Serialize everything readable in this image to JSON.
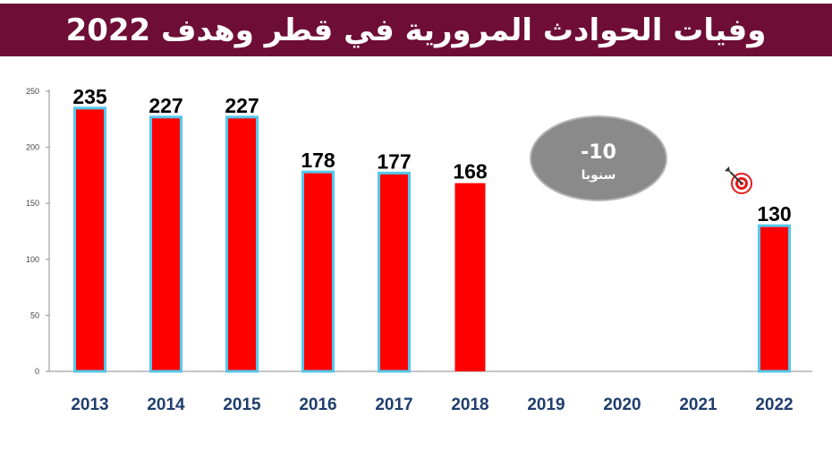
{
  "title": "وفيات الحوادث المرورية في قطر وهدف 2022",
  "chart_data": {
    "type": "bar",
    "categories": [
      "2013",
      "2014",
      "2015",
      "2016",
      "2017",
      "2018",
      "2019",
      "2020",
      "2021",
      "2022"
    ],
    "values": [
      235,
      227,
      227,
      178,
      177,
      168,
      null,
      null,
      null,
      130
    ],
    "data_labels": [
      "235",
      "227",
      "227",
      "178",
      "177",
      "168",
      "",
      "",
      "",
      "130"
    ],
    "y_ticks": [
      "0",
      "50",
      "100",
      "150",
      "200",
      "250"
    ],
    "ylim": [
      0,
      250
    ],
    "grid": false,
    "colors": {
      "bar_fill": "#ff0000",
      "bar_outline": "#55c8ec",
      "axis_label": "#1f3d6e",
      "badge_bg": "#8a8a8a",
      "title_bg": "#6e0d36"
    },
    "annotation": {
      "value": "-10",
      "text": "سنويا"
    },
    "target_icon": "dartboard-target-icon"
  }
}
